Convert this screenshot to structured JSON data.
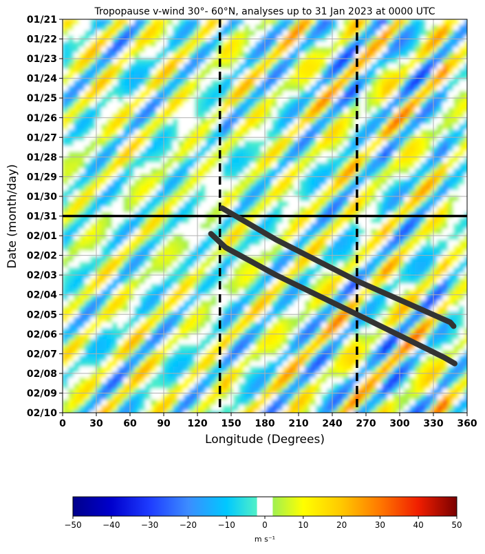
{
  "chart_data": {
    "type": "heatmap",
    "title": "Tropopause v-wind 30°- 60°N, analyses up to 31 Jan 2023 at 0000 UTC",
    "xlabel": "Longitude (Degrees)",
    "ylabel": "Date (month/day)",
    "x_ticks": [
      "0",
      "30",
      "60",
      "90",
      "120",
      "150",
      "180",
      "210",
      "240",
      "270",
      "300",
      "330",
      "360"
    ],
    "y_ticks": [
      "01/21",
      "01/22",
      "01/23",
      "01/24",
      "01/25",
      "01/26",
      "01/27",
      "01/28",
      "01/29",
      "01/30",
      "01/31",
      "02/01",
      "02/02",
      "02/03",
      "02/04",
      "02/05",
      "02/06",
      "02/07",
      "02/08",
      "02/09",
      "02/10"
    ],
    "xlim": [
      0,
      360
    ],
    "ylim_days": [
      0,
      20
    ],
    "grid": true,
    "analysis_line_date": "01/31",
    "vertical_dashed_longitudes": [
      140,
      262
    ],
    "colorbar": {
      "ticks": [
        "−50",
        "−40",
        "−30",
        "−20",
        "−10",
        "0",
        "10",
        "20",
        "30",
        "40",
        "50"
      ],
      "range": [
        -50,
        50
      ],
      "white_band": [
        -2,
        2
      ],
      "units_label": "m s⁻¹",
      "colors": [
        "#00008b",
        "#0000cd",
        "#1e3cff",
        "#3c8cff",
        "#00c8ff",
        "#50f0c8",
        "#ffffff",
        "#a0f050",
        "#ffff00",
        "#ffc800",
        "#ff7800",
        "#f01e00",
        "#7a0000"
      ]
    },
    "tracks": [
      {
        "points": [
          [
            142,
            9.6
          ],
          [
            190,
            11.2
          ],
          [
            262,
            13.3
          ],
          [
            345,
            15.4
          ],
          [
            348,
            15.6
          ]
        ]
      },
      {
        "points": [
          [
            132,
            10.9
          ],
          [
            145,
            11.6
          ],
          [
            190,
            13.0
          ],
          [
            262,
            15.0
          ],
          [
            340,
            17.2
          ],
          [
            349,
            17.5
          ]
        ]
      }
    ]
  }
}
